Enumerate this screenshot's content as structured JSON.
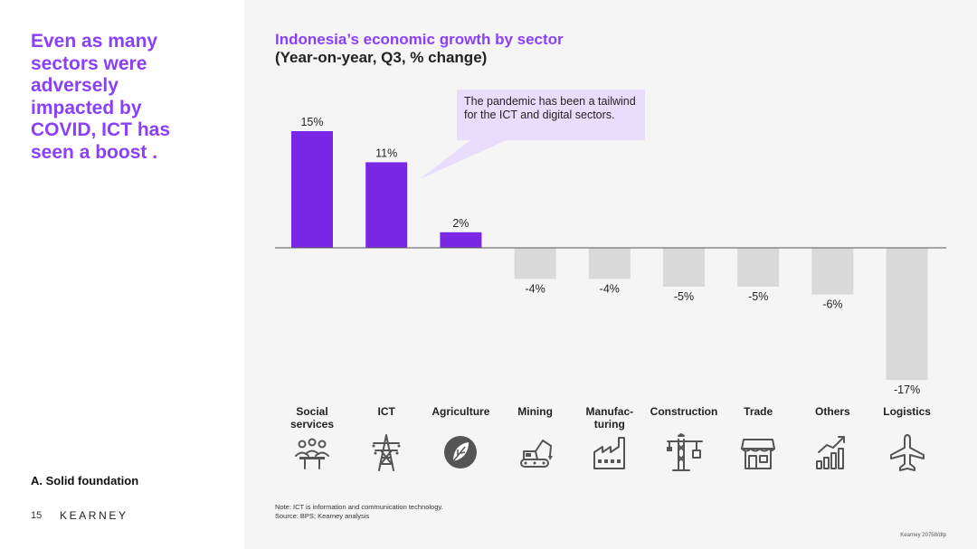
{
  "headline": "Even as many\nsectors were\nadversely\nimpacted by\nCOVID, ICT has\nseen a boost .",
  "section_label": "A. Solid foundation",
  "page_number": "15",
  "logo_text": "KEARNEY",
  "callout_text": "The pandemic has been a tailwind for the ICT and digital sectors.",
  "note": "Note: ICT is information and communication technology.",
  "source": "Source: BPS; Kearney analysis",
  "reference": "Kearney 20758/dtp",
  "colors": {
    "accent": "#8a3ffc",
    "positive_bar": "#7a28e6",
    "negative_bar": "#d9d9d9",
    "callout_bg": "#e9ddfd"
  },
  "chart_data": {
    "type": "bar",
    "title": "Indonesia’s economic growth by sector",
    "subtitle": "(Year-on-year, Q3, % change)",
    "categories": [
      "Social\nservices",
      "ICT",
      "Agriculture",
      "Mining",
      "Manufac-\nturing",
      "Construction",
      "Trade",
      "Others",
      "Logistics"
    ],
    "values": [
      15,
      11,
      2,
      -4,
      -4,
      -5,
      -5,
      -6,
      -17
    ],
    "labels": [
      "15%",
      "11%",
      "2%",
      "-4%",
      "-4%",
      "-5%",
      "-5%",
      "-6%",
      "-17%"
    ],
    "icons": [
      "people-icon",
      "transmission-tower-icon",
      "leaf-icon",
      "excavator-icon",
      "factory-icon",
      "crane-icon",
      "storefront-icon",
      "growth-chart-icon",
      "airplane-icon"
    ],
    "grid": false,
    "legend": false
  }
}
